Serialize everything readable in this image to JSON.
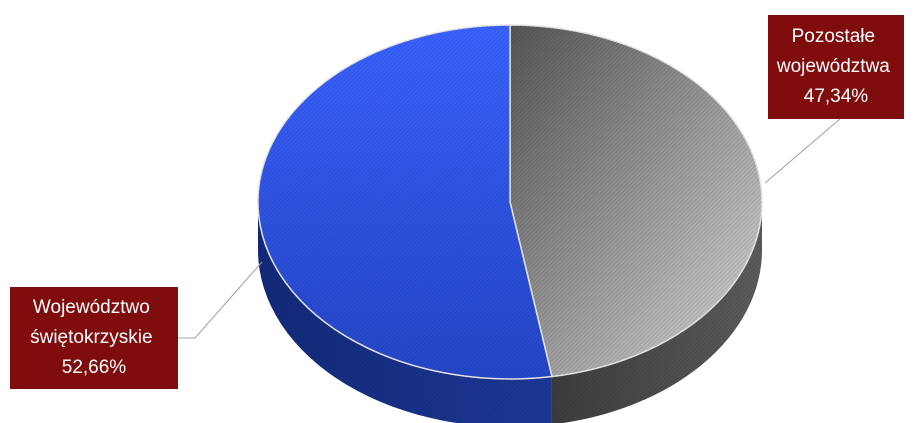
{
  "chart_data": {
    "type": "pie",
    "style": "3d",
    "slices": [
      {
        "name_lines": [
          "Pozostałe",
          "województwa"
        ],
        "value": 47.34,
        "value_label": "47,34%",
        "color": "#7a7a7a"
      },
      {
        "name_lines": [
          "Województwo",
          "świętokrzyskie"
        ],
        "value": 52.66,
        "value_label": "52,66%",
        "color": "#2f55e6"
      }
    ],
    "label_background": "#7f0d0d",
    "legend": "none"
  }
}
